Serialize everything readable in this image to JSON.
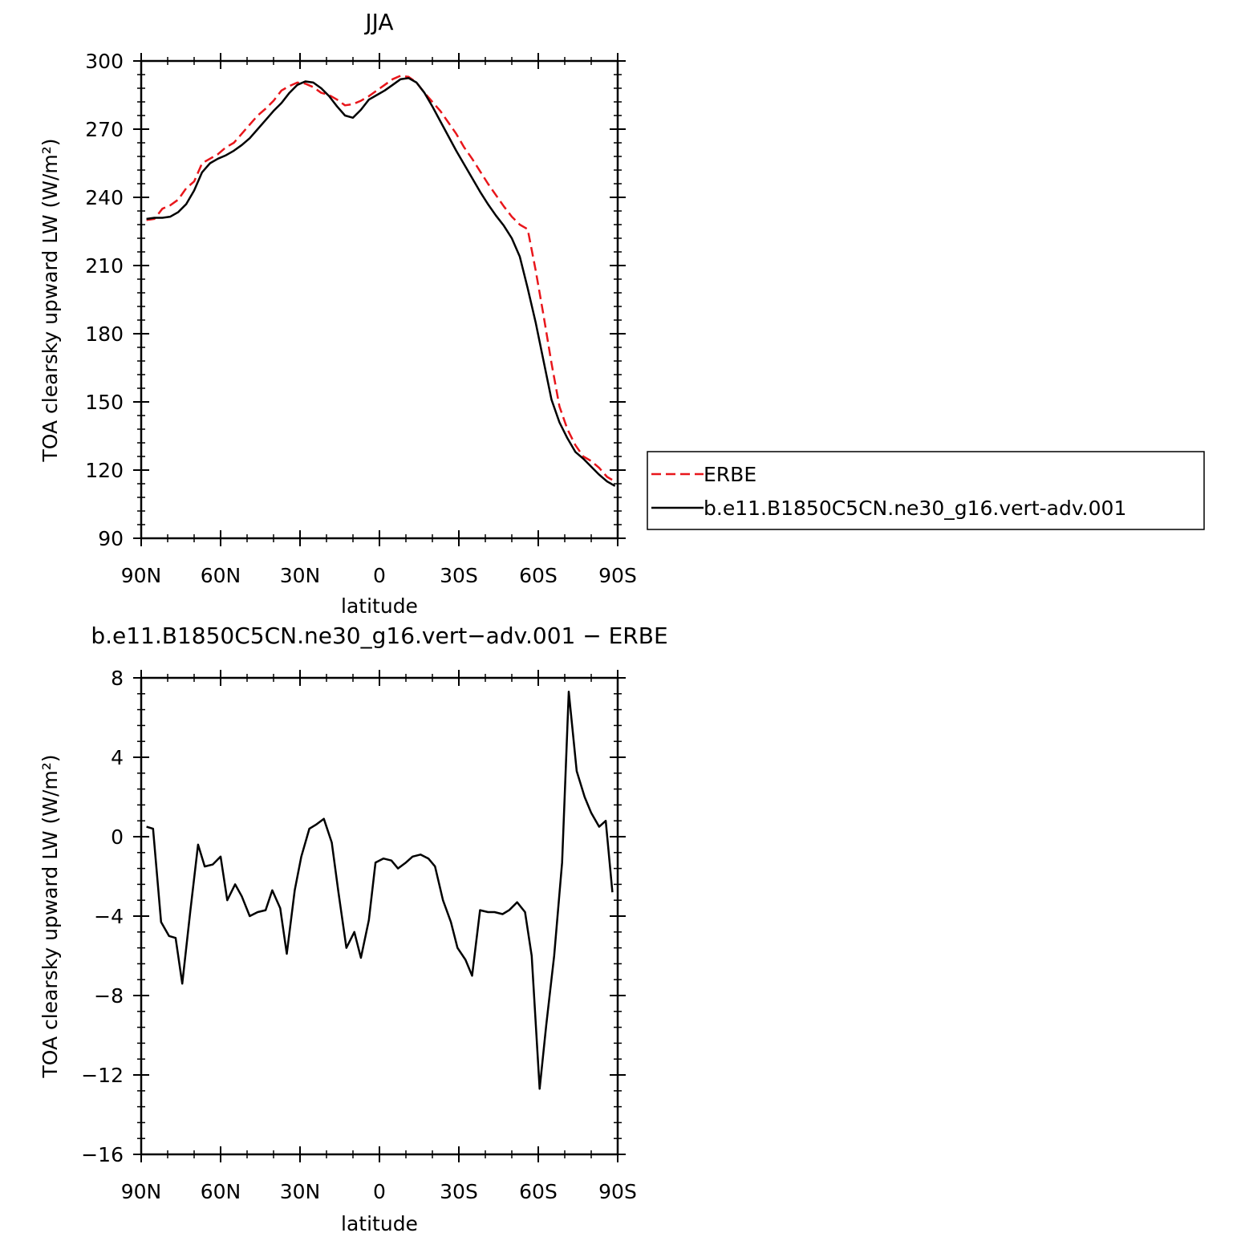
{
  "chart_data": [
    {
      "type": "line",
      "title": "JJA",
      "xlabel": "latitude",
      "ylabel": "TOA clearsky upward LW (W/m²)",
      "xlim": [
        90,
        -90
      ],
      "ylim": [
        90,
        300
      ],
      "yticks": [
        90,
        120,
        150,
        180,
        210,
        240,
        270,
        300
      ],
      "xticks": [
        {
          "value": 90,
          "label": "90N"
        },
        {
          "value": 60,
          "label": "60N"
        },
        {
          "value": 30,
          "label": "30N"
        },
        {
          "value": 0,
          "label": "0"
        },
        {
          "value": -30,
          "label": "30S"
        },
        {
          "value": -60,
          "label": "60S"
        },
        {
          "value": -90,
          "label": "90S"
        }
      ],
      "legend": {
        "placement": "right",
        "entries": [
          "ERBE",
          "b.e11.B1850C5CN.ne30_g16.vert-adv.001"
        ]
      },
      "series": [
        {
          "name": "ERBE",
          "color": "#e8161b",
          "dash": true,
          "x": [
            88,
            85,
            82,
            79,
            76,
            73,
            70,
            67,
            64,
            61,
            58,
            55,
            52,
            49,
            46,
            43,
            40,
            37,
            34,
            31,
            28,
            25,
            22,
            19,
            16,
            13,
            10,
            7,
            4,
            1,
            -2,
            -5,
            -8,
            -11,
            -14,
            -17,
            -20,
            -23,
            -26,
            -29,
            -32,
            -35,
            -38,
            -41,
            -44,
            -47,
            -50,
            -53,
            -56,
            -59,
            -62,
            -65,
            -68,
            -71,
            -74,
            -77,
            -80,
            -83,
            -86,
            -89
          ],
          "y": [
            230,
            230.5,
            235,
            236.5,
            239,
            244,
            247,
            255,
            257,
            259,
            262,
            264,
            268,
            272,
            276,
            279,
            282.5,
            287,
            289,
            290.5,
            290,
            288.5,
            286,
            285,
            283,
            280.5,
            281,
            282.5,
            284.5,
            287,
            289.5,
            292,
            293.5,
            293,
            290.5,
            286,
            282,
            278,
            273,
            268,
            262,
            257,
            251.5,
            246,
            241,
            236,
            231.5,
            228,
            226,
            208,
            188,
            167,
            148,
            138,
            131,
            126,
            124,
            121,
            117,
            115
          ]
        },
        {
          "name": "b.e11.B1850C5CN.ne30_g16.vert-adv.001",
          "color": "#000000",
          "dash": false,
          "x": [
            88,
            85,
            82,
            79,
            76,
            73,
            70,
            67,
            64,
            61,
            58,
            55,
            52,
            49,
            46,
            43,
            40,
            37,
            34,
            31,
            28,
            25,
            22,
            19,
            16,
            13,
            10,
            7,
            4,
            1,
            -2,
            -5,
            -8,
            -11,
            -14,
            -17,
            -20,
            -23,
            -26,
            -29,
            -32,
            -35,
            -38,
            -41,
            -44,
            -47,
            -50,
            -53,
            -56,
            -59,
            -62,
            -65,
            -68,
            -71,
            -74,
            -77,
            -80,
            -83,
            -86,
            -89
          ],
          "y": [
            230.5,
            231,
            231,
            231.5,
            233.5,
            237,
            243,
            251,
            255,
            257,
            258.5,
            260.5,
            263,
            266,
            270,
            274,
            278,
            281.5,
            286,
            289.5,
            291,
            290.5,
            288,
            284.5,
            280,
            276,
            275,
            278.5,
            283,
            285,
            287,
            289.5,
            292,
            292.5,
            290.5,
            286,
            280,
            273.5,
            267,
            260.5,
            254.5,
            248.5,
            242.5,
            237,
            232,
            227.5,
            222,
            214,
            200,
            185,
            168,
            151,
            141,
            134,
            128,
            125,
            121.5,
            118,
            115,
            113
          ]
        }
      ]
    },
    {
      "type": "line",
      "title": "b.e11.B1850C5CN.ne30_g16.vert−adv.001 − ERBE",
      "xlabel": "latitude",
      "ylabel": "TOA clearsky upward LW (W/m²)",
      "xlim": [
        90,
        -90
      ],
      "ylim": [
        -16,
        8
      ],
      "yticks": [
        {
          "value": 8,
          "label": "8"
        },
        {
          "value": 4,
          "label": "4"
        },
        {
          "value": 0,
          "label": "0"
        },
        {
          "value": -4,
          "label": "−4"
        },
        {
          "value": -8,
          "label": "−8"
        },
        {
          "value": -12,
          "label": "−12"
        },
        {
          "value": -16,
          "label": "−16"
        }
      ],
      "xticks": [
        {
          "value": 90,
          "label": "90N"
        },
        {
          "value": 60,
          "label": "60N"
        },
        {
          "value": 30,
          "label": "30N"
        },
        {
          "value": 0,
          "label": "0"
        },
        {
          "value": -30,
          "label": "30S"
        },
        {
          "value": -60,
          "label": "60S"
        },
        {
          "value": -90,
          "label": "90S"
        }
      ],
      "series": [
        {
          "color": "#000000",
          "dash": false,
          "x": [
            88,
            85.5,
            82.5,
            79.5,
            77,
            74.5,
            71.5,
            68.5,
            66,
            63,
            60,
            57.5,
            54.5,
            52,
            49,
            46,
            43,
            40.5,
            37.5,
            35,
            32,
            29.5,
            26.5,
            24,
            21,
            18,
            15.5,
            12.5,
            9.5,
            7,
            4,
            1.5,
            -1.5,
            -4.5,
            -7,
            -10,
            -12.5,
            -15.5,
            -18.5,
            -21,
            -24,
            -27,
            -29.5,
            -32.5,
            -35,
            -38,
            -41,
            -43.5,
            -46.5,
            -49,
            -52,
            -55,
            -57.5,
            -60.5,
            -63,
            -66,
            -69,
            -71.5,
            -74.5,
            -77.5,
            -80,
            -83,
            -85.5,
            -88
          ],
          "y": [
            0.5,
            0.4,
            -4.3,
            -5.0,
            -5.1,
            -7.4,
            -3.8,
            -0.4,
            -1.5,
            -1.4,
            -1.0,
            -3.2,
            -2.4,
            -3.0,
            -4.0,
            -3.8,
            -3.7,
            -2.7,
            -3.6,
            -5.9,
            -2.7,
            -1.0,
            0.4,
            0.6,
            0.9,
            -0.3,
            -2.8,
            -5.6,
            -4.8,
            -6.1,
            -4.2,
            -1.3,
            -1.1,
            -1.2,
            -1.6,
            -1.3,
            -1.0,
            -0.9,
            -1.1,
            -1.5,
            -3.2,
            -4.3,
            -5.6,
            -6.2,
            -7.0,
            -3.7,
            -3.8,
            -3.8,
            -3.9,
            -3.7,
            -3.3,
            -3.8,
            -6.0,
            -12.7,
            -9.5,
            -6.0,
            -1.3,
            7.3,
            3.3,
            2.0,
            1.2,
            0.5,
            0.8,
            -2.8
          ]
        }
      ]
    }
  ]
}
